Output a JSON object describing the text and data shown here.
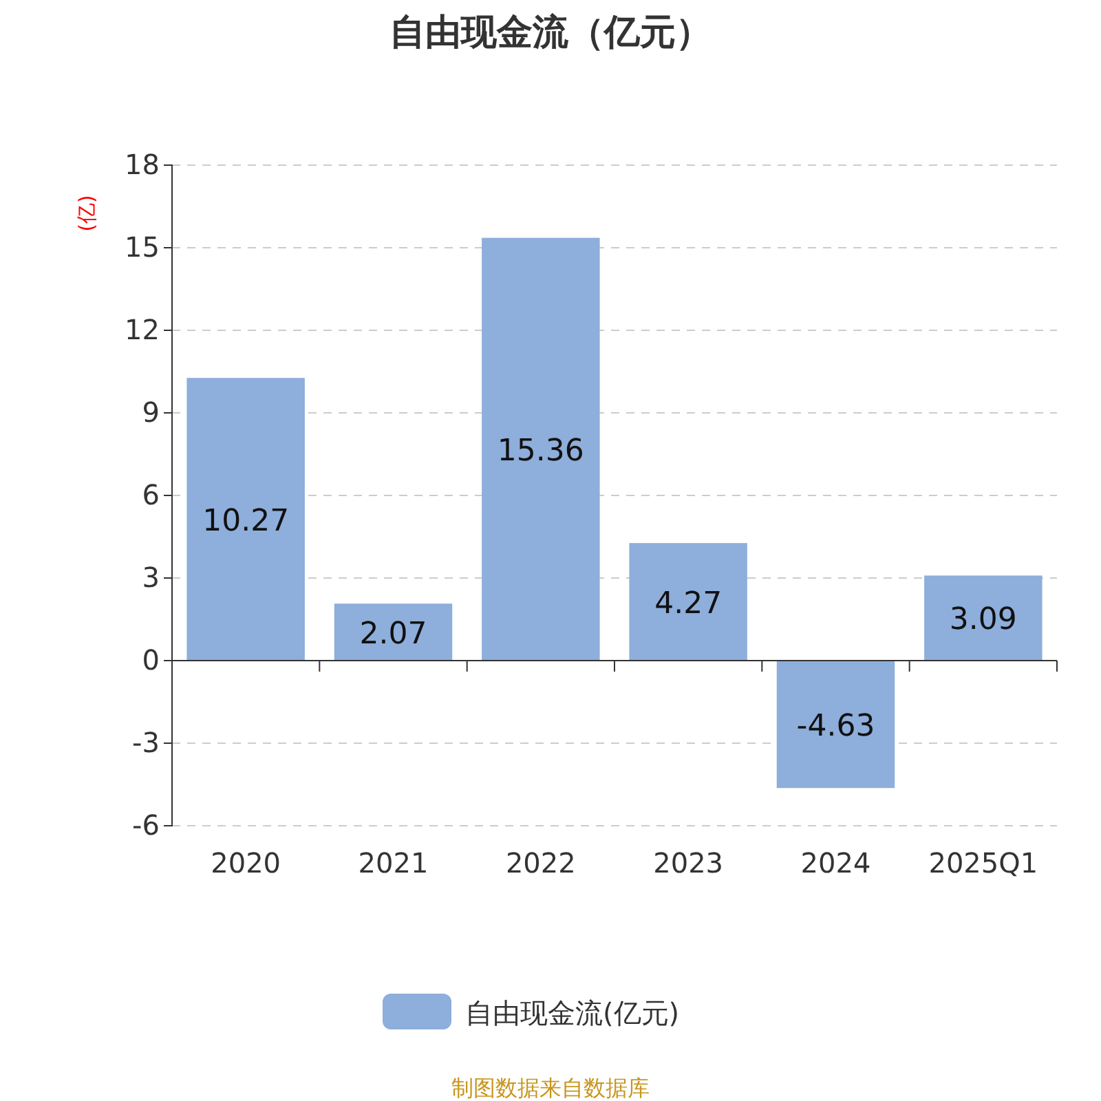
{
  "chart_data": {
    "type": "bar",
    "title": "自由现金流（亿元）",
    "ylabel": "(亿)",
    "categories": [
      "2020",
      "2021",
      "2022",
      "2023",
      "2024",
      "2025Q1"
    ],
    "series": [
      {
        "name": "自由现金流(亿元)",
        "color": "#8eaedb",
        "values": [
          10.27,
          2.07,
          15.36,
          4.27,
          -4.63,
          3.09
        ]
      }
    ],
    "ylim": [
      -6,
      18
    ],
    "yticks": [
      -6,
      -3,
      0,
      3,
      6,
      9,
      12,
      15,
      18
    ],
    "grid": "y",
    "legend": "bottom",
    "data_labels": true,
    "annotations": [
      "制图数据来自数据库"
    ]
  }
}
